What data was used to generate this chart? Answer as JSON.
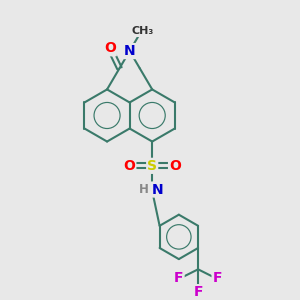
{
  "bg_color": "#e8e8e8",
  "bond_color": "#3a7a6a",
  "bond_width": 1.5,
  "atom_colors": {
    "O": "#ff0000",
    "N": "#0000cc",
    "S": "#cccc00",
    "F": "#cc00cc",
    "H": "#888888",
    "C": "#333333"
  },
  "font_size": 9.5,
  "fig_size": [
    3.0,
    3.0
  ],
  "dpi": 100
}
